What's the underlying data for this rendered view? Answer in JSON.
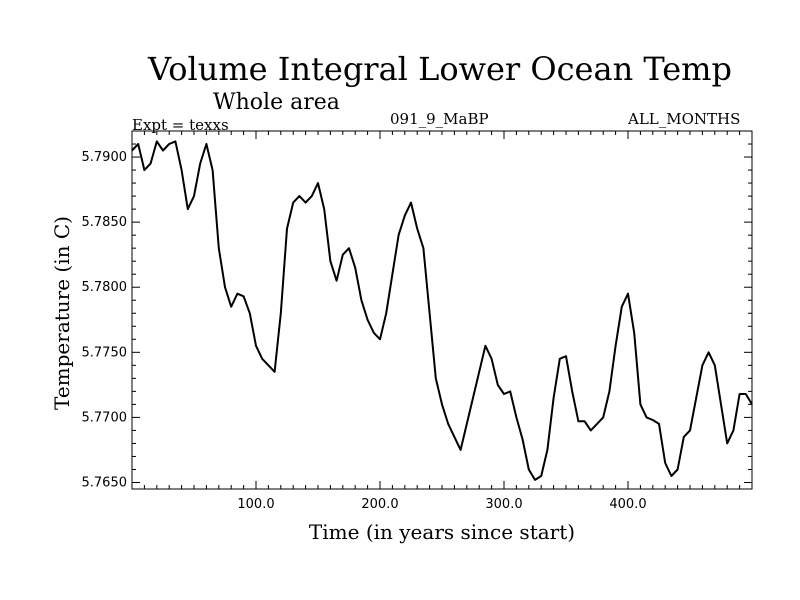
{
  "header": {
    "title": "Volume Integral Lower Ocean Temp",
    "subtitle": "Whole area",
    "experiment": "Expt = texxs",
    "run_id": "091_9_MaBP",
    "months": "ALL_MONTHS"
  },
  "chart_data": {
    "type": "line",
    "title": "Volume Integral Lower Ocean Temp",
    "xlabel": "Time (in years since start)",
    "ylabel": "Temperature (in C)",
    "xlim": [
      0,
      500
    ],
    "ylim": [
      5.7645,
      5.792
    ],
    "xticks": [
      100.0,
      200.0,
      300.0,
      400.0
    ],
    "xtick_labels": [
      "100.0",
      "200.0",
      "300.0",
      "400.0"
    ],
    "yticks": [
      5.765,
      5.77,
      5.775,
      5.78,
      5.785,
      5.79
    ],
    "ytick_labels": [
      "5.7650",
      "5.7700",
      "5.7750",
      "5.7800",
      "5.7850",
      "5.7900"
    ],
    "grid": false,
    "series": [
      {
        "name": "Volume Integral Lower Ocean Temp",
        "color": "#000000",
        "x": [
          0,
          5,
          10,
          15,
          20,
          25,
          30,
          35,
          40,
          45,
          50,
          55,
          60,
          65,
          70,
          75,
          80,
          85,
          90,
          95,
          100,
          105,
          110,
          115,
          120,
          125,
          130,
          135,
          140,
          145,
          150,
          155,
          160,
          165,
          170,
          175,
          180,
          185,
          190,
          195,
          200,
          205,
          210,
          215,
          220,
          225,
          230,
          235,
          240,
          245,
          250,
          255,
          260,
          265,
          270,
          275,
          280,
          285,
          290,
          295,
          300,
          305,
          310,
          315,
          320,
          325,
          330,
          335,
          340,
          345,
          350,
          355,
          360,
          365,
          370,
          375,
          380,
          385,
          390,
          395,
          400,
          405,
          410,
          415,
          420,
          425,
          430,
          435,
          440,
          445,
          450,
          455,
          460,
          465,
          470,
          475,
          480,
          485,
          490,
          495,
          500
        ],
        "values": [
          5.7905,
          5.791,
          5.789,
          5.7895,
          5.7912,
          5.7905,
          5.791,
          5.7912,
          5.789,
          5.786,
          5.787,
          5.7895,
          5.791,
          5.789,
          5.783,
          5.78,
          5.7785,
          5.7795,
          5.7793,
          5.778,
          5.7755,
          5.7745,
          5.774,
          5.7735,
          5.778,
          5.7845,
          5.7865,
          5.787,
          5.7865,
          5.787,
          5.788,
          5.786,
          5.782,
          5.7805,
          5.7825,
          5.783,
          5.7815,
          5.779,
          5.7775,
          5.7765,
          5.776,
          5.778,
          5.781,
          5.784,
          5.7855,
          5.7865,
          5.7845,
          5.783,
          5.778,
          5.773,
          5.771,
          5.7695,
          5.7685,
          5.7675,
          5.7695,
          5.7715,
          5.7735,
          5.7755,
          5.7745,
          5.7725,
          5.7718,
          5.772,
          5.77,
          5.7683,
          5.766,
          5.7652,
          5.7655,
          5.7675,
          5.7715,
          5.7745,
          5.7747,
          5.772,
          5.7697,
          5.7697,
          5.769,
          5.7695,
          5.77,
          5.772,
          5.7755,
          5.7785,
          5.7795,
          5.7765,
          5.771,
          5.77,
          5.7698,
          5.7695,
          5.7665,
          5.7655,
          5.766,
          5.7685,
          5.769,
          5.7715,
          5.774,
          5.775,
          5.774,
          5.771,
          5.768,
          5.769,
          5.7718,
          5.7718,
          5.771
        ]
      }
    ]
  }
}
